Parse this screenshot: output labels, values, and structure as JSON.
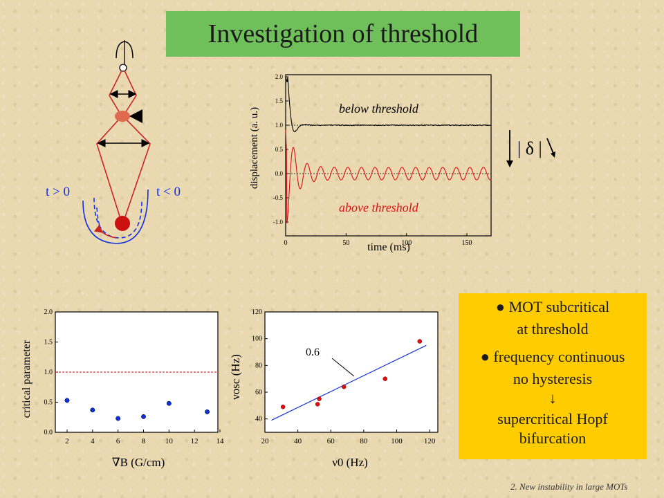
{
  "title": "Investigation of  threshold",
  "pendulum": {
    "label_left": "t > 0",
    "label_right": "t < 0"
  },
  "delta_symbol": "| δ |",
  "top_plot": {
    "ylabel": "displacement (a. u.)",
    "xlabel": "time (ms)",
    "yticks": [
      "2.0",
      "1.5",
      "1.0",
      "0.5",
      "0.0",
      "-0.5",
      "-1.0"
    ],
    "xticks": [
      "0",
      "50",
      "100",
      "150"
    ],
    "below_label": "below threshold",
    "above_label": "above threshold"
  },
  "chart_data": [
    {
      "type": "scatter",
      "title": "",
      "xlabel": "∇B (G/cm)",
      "ylabel": "critical parameter",
      "xlim": [
        1,
        14
      ],
      "ylim": [
        0.0,
        2.0
      ],
      "xticks": [
        "2",
        "4",
        "6",
        "8",
        "10",
        "12",
        "14"
      ],
      "yticks": [
        "2.0",
        "1.5",
        "1.0",
        "0.5",
        "0.0"
      ],
      "reference_line_y": 1.0,
      "reference_color": "#cc0000",
      "point_color": "#1030e0",
      "x": [
        2,
        4,
        6,
        8,
        10,
        13
      ],
      "y": [
        0.53,
        0.37,
        0.23,
        0.26,
        0.48,
        0.34
      ]
    },
    {
      "type": "scatter",
      "title": "",
      "xlabel": "ν0 (Hz)",
      "ylabel": "νosc (Hz)",
      "xlim": [
        20,
        125
      ],
      "ylim": [
        30,
        120
      ],
      "xticks": [
        "20",
        "40",
        "60",
        "80",
        "100",
        "120"
      ],
      "yticks": [
        "120",
        "100",
        "80",
        "60",
        "40"
      ],
      "point_color": "#dd1010",
      "fit_color": "#1030e0",
      "fit_label": "0.6",
      "fit_line": {
        "x": [
          24,
          118
        ],
        "y": [
          39,
          95
        ]
      },
      "x": [
        31,
        52,
        53,
        68,
        93,
        114
      ],
      "y": [
        49,
        51,
        55,
        64,
        70,
        98
      ]
    }
  ],
  "info_box": {
    "line1": "MOT subcritical",
    "line2": "at threshold",
    "line3": "frequency continuous",
    "line4": "no hysteresis",
    "arrow": "↓",
    "line5": "supercritical Hopf",
    "line6": "bifurcation"
  },
  "footer": "2. New instability  in large  MOTs"
}
